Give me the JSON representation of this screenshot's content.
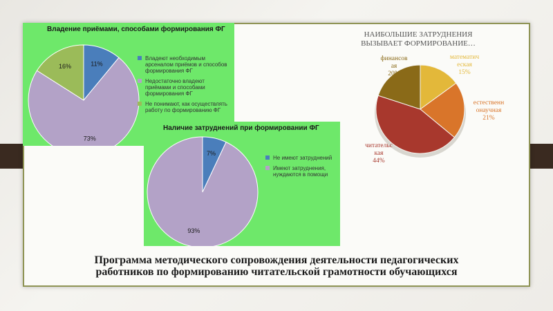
{
  "chart_data": [
    {
      "type": "pie",
      "title": "Владение приёмами, способами формирования ФГ",
      "slices": [
        {
          "label": "Владеют необходимым\nарсеналом приёмов и способов\nформирования ФГ",
          "value": 11,
          "color": "#4a7ebb"
        },
        {
          "label": "Недостаточно владеют\nприёмами и способами\nформирования ФГ",
          "value": 73,
          "color": "#b3a2c7"
        },
        {
          "label": "Не понимают, как осуществлять\nработу по формированию ФГ",
          "value": 16,
          "color": "#9bbb59"
        }
      ],
      "data_labels": [
        "11%",
        "73%",
        "16%"
      ],
      "legend_position": "right"
    },
    {
      "type": "pie",
      "title": "Наличие затруднений  при формировании ФГ",
      "slices": [
        {
          "label": "Не имеют затруднений",
          "value": 7,
          "color": "#4a7ebb"
        },
        {
          "label": "Имеют затруднения,\nнуждаются в помощи",
          "value": 93,
          "color": "#b3a2c7"
        }
      ],
      "data_labels": [
        "7%",
        "93%"
      ],
      "legend_position": "right"
    },
    {
      "type": "pie",
      "title": "НАИБОЛЬШИЕ ЗАТРУДНЕНИЯ\nВЫЗЫВАЕТ ФОРМИРОВАНИЕ…",
      "slices": [
        {
          "label": "математич\nеская",
          "value": 15,
          "color": "#e3b83a"
        },
        {
          "label": "естественн\nонаучная",
          "value": 21,
          "color": "#d9752a"
        },
        {
          "label": "читательс\nкая",
          "value": 44,
          "color": "#a8382d"
        },
        {
          "label": "финансов\nая",
          "value": 20,
          "color": "#8a6a18"
        }
      ],
      "data_labels": [
        "15%",
        "21%",
        "44%",
        "20%"
      ],
      "legend_position": "none"
    }
  ],
  "footer": {
    "line1": "Программа методического сопровождения деятельности педагогических",
    "line2": "работников по формированию читательской грамотности обучающихся"
  }
}
